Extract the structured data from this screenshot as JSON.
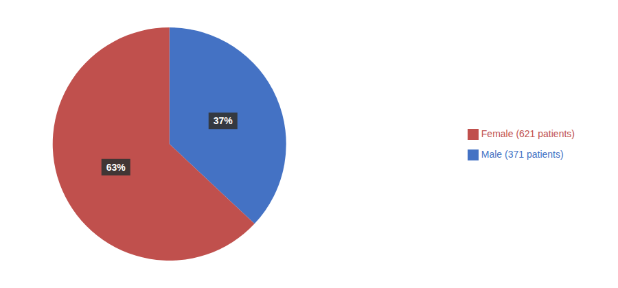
{
  "chart_data": {
    "type": "pie",
    "categories": [
      "Male (371 patients)",
      "Female (621 patients)"
    ],
    "values": [
      37,
      63
    ],
    "value_labels": [
      "37%",
      "63%"
    ],
    "colors": [
      "#4472C4",
      "#C0504D"
    ],
    "data_labels": true,
    "legend": "right"
  }
}
